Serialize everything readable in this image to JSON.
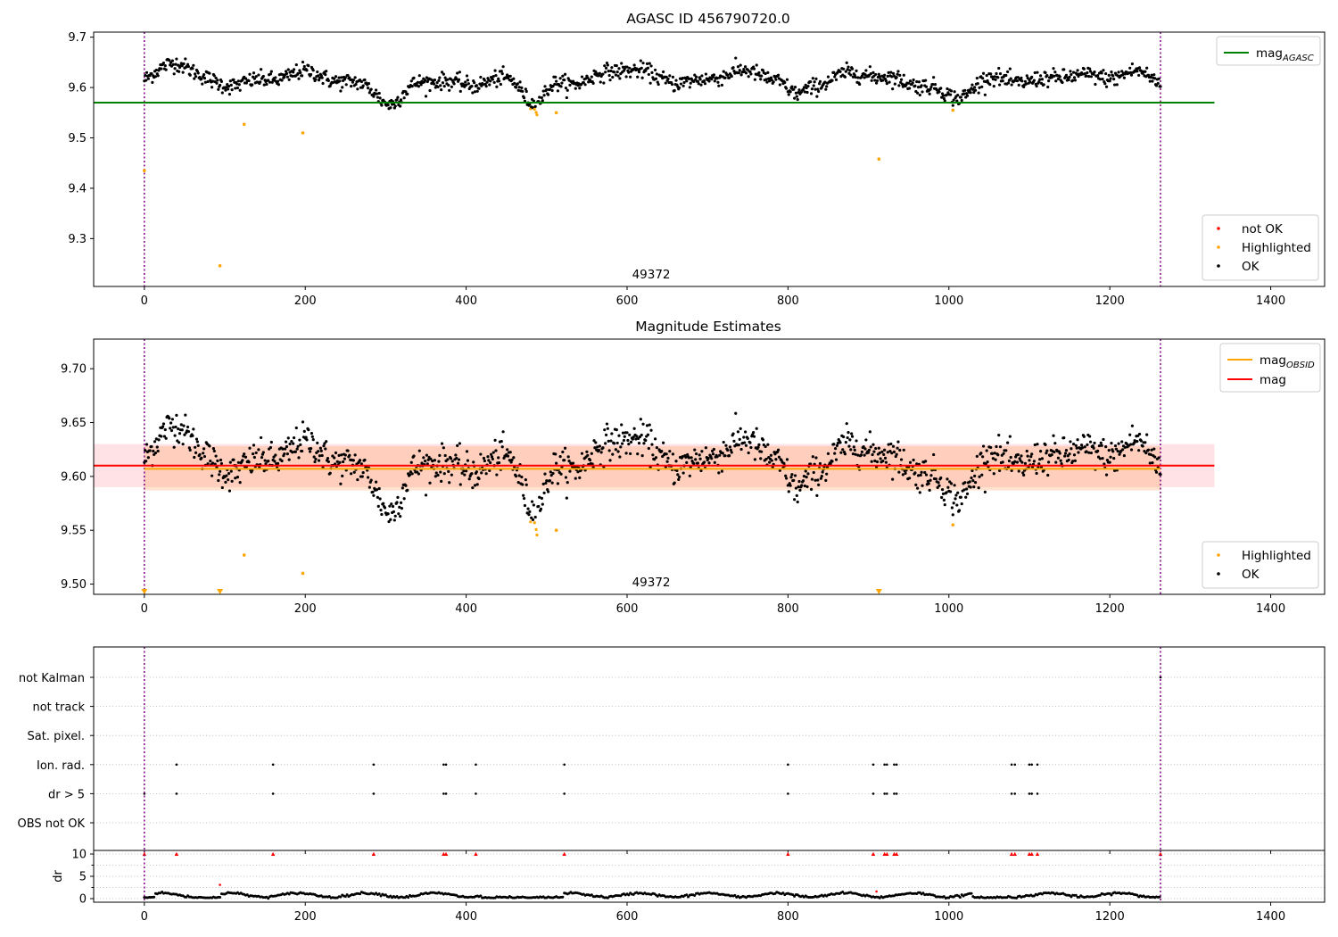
{
  "chart_data": [
    {
      "type": "scatter",
      "id": "top",
      "title": "AGASC ID 456790720.0",
      "xlabel": "",
      "ylabel": "",
      "xlim": [
        -63,
        1467
      ],
      "ylim": [
        9.205,
        9.71
      ],
      "xticks": [
        0,
        200,
        400,
        600,
        800,
        1000,
        1200,
        1400
      ],
      "yticks": [
        9.3,
        9.4,
        9.5,
        9.6,
        9.7
      ],
      "ytick_labels": [
        "9.3",
        "9.4",
        "9.5",
        "9.6",
        "9.7"
      ],
      "annotation": {
        "text": "49372",
        "x": 630
      },
      "obs_bounds": [
        0,
        1263
      ],
      "hlines": [
        {
          "name": "mag",
          "sub": "AGASC",
          "y": 9.57,
          "x": [
            -63,
            1330
          ],
          "color": "#008000"
        }
      ],
      "legend_lines": [
        {
          "name": "mag",
          "sub": "AGASC",
          "color": "#008000"
        }
      ],
      "legend_points": [
        {
          "name": "not OK",
          "color": "#ff0000"
        },
        {
          "name": "Highlighted",
          "color": "#ffa500"
        },
        {
          "name": "OK",
          "color": "#000000"
        }
      ],
      "trend": {
        "x_max": 1263,
        "step": 1,
        "base": 9.613,
        "dips": [
          {
            "center": 308,
            "depth": 0.052,
            "width": 22
          },
          {
            "center": 485,
            "depth": 0.05,
            "width": 18
          },
          {
            "center": 1010,
            "depth": 0.032,
            "width": 25
          },
          {
            "center": 810,
            "depth": 0.025,
            "width": 15
          }
        ],
        "bumps": [
          {
            "center": 40,
            "height": 0.032,
            "width": 25
          },
          {
            "center": 210,
            "height": 0.014,
            "width": 30
          },
          {
            "center": 590,
            "height": 0.02,
            "width": 40
          },
          {
            "center": 730,
            "height": 0.015,
            "width": 40
          },
          {
            "center": 880,
            "height": 0.012,
            "width": 30
          },
          {
            "center": 1140,
            "height": 0.014,
            "width": 30
          },
          {
            "center": 1235,
            "height": 0.018,
            "width": 25
          }
        ],
        "noise": 0.008,
        "highlight_threshold": 9.558
      },
      "highlighted_points": [
        {
          "x": 0,
          "y": 9.435
        },
        {
          "x": 94,
          "y": 9.246
        },
        {
          "x": 124,
          "y": 9.527
        },
        {
          "x": 197,
          "y": 9.51
        },
        {
          "x": 512,
          "y": 9.55
        },
        {
          "x": 913,
          "y": 9.458
        },
        {
          "x": 1005,
          "y": 9.555
        }
      ],
      "notok_points": []
    },
    {
      "type": "scatter",
      "id": "mid",
      "title": "Magnitude Estimates",
      "xlabel": "",
      "ylabel": "",
      "xlim": [
        -63,
        1467
      ],
      "ylim": [
        9.4905,
        9.7275
      ],
      "xticks": [
        0,
        200,
        400,
        600,
        800,
        1000,
        1200,
        1400
      ],
      "yticks": [
        9.5,
        9.55,
        9.6,
        9.65,
        9.7
      ],
      "ytick_labels": [
        "9.50",
        "9.55",
        "9.60",
        "9.65",
        "9.70"
      ],
      "annotation": {
        "text": "49372",
        "x": 630
      },
      "obs_bounds": [
        0,
        1263
      ],
      "bands": [
        {
          "y": [
            9.59,
            9.63
          ],
          "x": [
            -63,
            1330
          ],
          "color": "#ff8c9a",
          "opacity": 0.25
        },
        {
          "y": [
            9.587,
            9.628
          ],
          "x": [
            0,
            1263
          ],
          "color": "#ffa060",
          "opacity": 0.3
        }
      ],
      "hlines": [
        {
          "name": "mag",
          "sub": "",
          "y": 9.61,
          "x": [
            -63,
            1330
          ],
          "color": "#ff0000"
        },
        {
          "name": "mag",
          "sub": "OBSID",
          "y": 9.607,
          "x": [
            0,
            1263
          ],
          "color": "#ffa500"
        }
      ],
      "legend_lines": [
        {
          "name": "mag",
          "sub": "OBSID",
          "color": "#ffa500"
        },
        {
          "name": "mag",
          "sub": "",
          "color": "#ff0000"
        }
      ],
      "legend_points": [
        {
          "name": "Highlighted",
          "color": "#ffa500"
        },
        {
          "name": "OK",
          "color": "#000000"
        }
      ],
      "trend": {
        "x_max": 1263,
        "step": 1,
        "base": 9.613,
        "dips": [
          {
            "center": 308,
            "depth": 0.052,
            "width": 22
          },
          {
            "center": 485,
            "depth": 0.05,
            "width": 18
          },
          {
            "center": 1010,
            "depth": 0.032,
            "width": 25
          },
          {
            "center": 810,
            "depth": 0.025,
            "width": 15
          }
        ],
        "bumps": [
          {
            "center": 40,
            "height": 0.032,
            "width": 25
          },
          {
            "center": 210,
            "height": 0.014,
            "width": 30
          },
          {
            "center": 590,
            "height": 0.02,
            "width": 40
          },
          {
            "center": 730,
            "height": 0.015,
            "width": 40
          },
          {
            "center": 880,
            "height": 0.012,
            "width": 30
          },
          {
            "center": 1140,
            "height": 0.014,
            "width": 30
          },
          {
            "center": 1235,
            "height": 0.018,
            "width": 25
          }
        ],
        "noise": 0.008,
        "highlight_threshold": 9.558
      },
      "highlighted_points": [
        {
          "x": 124,
          "y": 9.527
        },
        {
          "x": 197,
          "y": 9.51
        },
        {
          "x": 512,
          "y": 9.55
        },
        {
          "x": 1005,
          "y": 9.555
        }
      ],
      "clipped_markers": [
        {
          "x": 0,
          "y": 9.493
        },
        {
          "x": 94,
          "y": 9.493
        },
        {
          "x": 913,
          "y": 9.493
        }
      ],
      "notok_points": []
    },
    {
      "type": "scatter",
      "id": "flags",
      "title": "",
      "xlim": [
        -63,
        1467
      ],
      "xticks": [
        0,
        200,
        400,
        600,
        800,
        1000,
        1200,
        1400
      ],
      "obs_bounds": [
        0,
        1263
      ],
      "categories": [
        "not Kalman",
        "not track",
        "Sat. pixel.",
        "Ion. rad.",
        "dr > 5",
        "OBS not OK"
      ],
      "flag_points": {
        "not Kalman": [
          1263
        ],
        "not track": [],
        "Sat. pixel.": [],
        "Ion. rad.": [
          40,
          160,
          285,
          372,
          375,
          412,
          522,
          800,
          906,
          920,
          923,
          932,
          935,
          1078,
          1082,
          1100,
          1103,
          1110
        ],
        "dr > 5": [
          0,
          40,
          160,
          285,
          372,
          375,
          412,
          522,
          800,
          906,
          920,
          923,
          932,
          935,
          1078,
          1082,
          1100,
          1103,
          1110
        ],
        "OBS not OK": []
      }
    },
    {
      "type": "scatter",
      "id": "dr",
      "title": "",
      "ylabel": "dr",
      "xlim": [
        -63,
        1467
      ],
      "ylim": [
        -0.8,
        10.8
      ],
      "xticks": [
        0,
        200,
        400,
        600,
        800,
        1000,
        1200,
        1400
      ],
      "xtick_labels": [
        "0",
        "200",
        "400",
        "600",
        "800",
        "1000",
        "1200",
        "1400"
      ],
      "yticks": [
        0,
        5,
        10
      ],
      "ytick_labels": [
        "0",
        "5",
        "10"
      ],
      "minor_yticks": [
        2.5,
        7.5
      ],
      "obs_bounds": [
        0,
        1263
      ],
      "dr_series": {
        "x_max": 1263,
        "step": 2,
        "base": 0.8,
        "amp": 0.45,
        "period": 85,
        "noise": 0.12
      },
      "dr_low_segments": [
        [
          0,
          12
        ],
        [
          60,
          95
        ],
        [
          420,
          520
        ],
        [
          1030,
          1070
        ]
      ],
      "clipped_red": [
        0,
        40,
        160,
        285,
        372,
        375,
        412,
        522,
        800,
        906,
        920,
        923,
        932,
        935,
        1078,
        1082,
        1100,
        1103,
        1110,
        1263
      ],
      "red_points": [
        {
          "x": 94,
          "y": 3.1
        },
        {
          "x": 910,
          "y": 1.6
        }
      ],
      "ok_color": "#000000",
      "notok_color": "#ff0000"
    }
  ]
}
